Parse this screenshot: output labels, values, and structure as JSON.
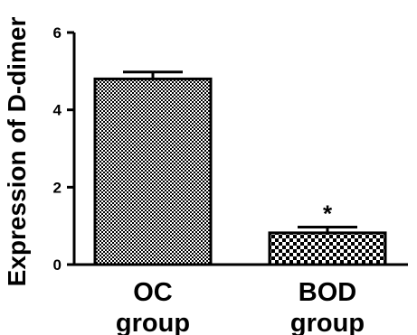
{
  "chart_data": {
    "type": "bar",
    "categories": [
      [
        "OC",
        "group"
      ],
      [
        "BOD",
        "group"
      ]
    ],
    "values": [
      4.8,
      0.82
    ],
    "errors": [
      0.18,
      0.15
    ],
    "annotations": [
      "",
      "*"
    ],
    "ylabel": "Expression of D-dimer",
    "xlabel": "",
    "ylim": [
      0,
      6
    ],
    "yticks": [
      0,
      2,
      4,
      6
    ],
    "grid": false,
    "fill_pattern": "checkerboard"
  }
}
